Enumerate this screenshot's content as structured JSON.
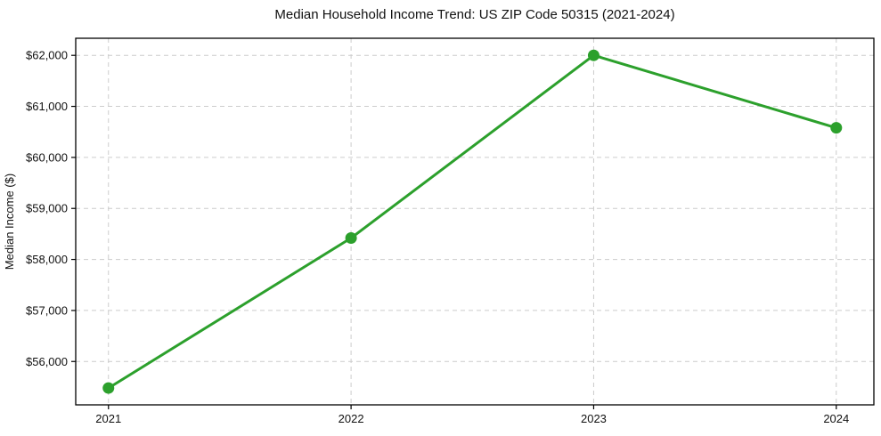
{
  "figure": {
    "background": "#ffffff",
    "text_color": "#111111",
    "spine_color": "#000000"
  },
  "chart_data": {
    "type": "line",
    "title": "Median Household Income Trend: US ZIP Code 50315 (2021-2024)",
    "xlabel": "",
    "ylabel": "Median Income ($)",
    "categories": [
      2021,
      2022,
      2023,
      2024
    ],
    "values": [
      55480,
      58420,
      62000,
      60580
    ],
    "xtick_labels": [
      "2021",
      "2022",
      "2023",
      "2024"
    ],
    "yticks": [
      56000,
      57000,
      58000,
      59000,
      60000,
      61000,
      62000
    ],
    "ytick_labels": [
      "$56,000",
      "$57,000",
      "$58,000",
      "$59,000",
      "$60,000",
      "$61,000",
      "$62,000"
    ],
    "xlim": [
      2020.865,
      2024.155
    ],
    "ylim": [
      55150,
      62335
    ],
    "grid": true,
    "grid_color": "#cccccc",
    "grid_dash": "5 4",
    "line_color": "#2ca02c",
    "marker": "circle",
    "marker_color": "#2ca02c",
    "legend_position": "none"
  }
}
